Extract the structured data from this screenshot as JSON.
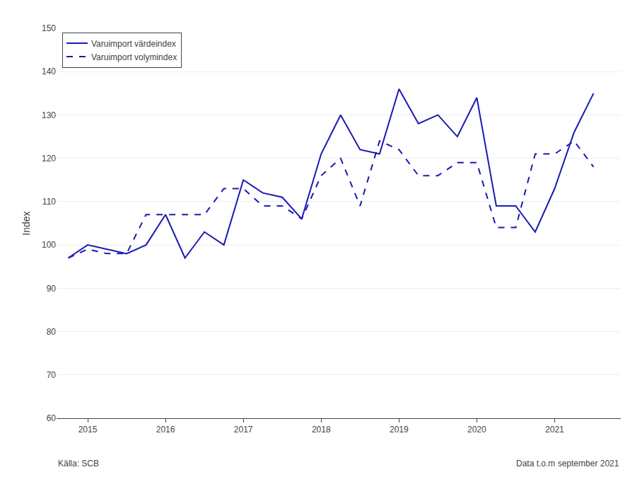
{
  "chart_data": {
    "type": "line",
    "x": [
      2014.75,
      2015.0,
      2015.25,
      2015.5,
      2015.75,
      2016.0,
      2016.25,
      2016.5,
      2016.75,
      2017.0,
      2017.25,
      2017.5,
      2017.75,
      2018.0,
      2018.25,
      2018.5,
      2018.75,
      2019.0,
      2019.25,
      2019.5,
      2019.75,
      2020.0,
      2020.25,
      2020.5,
      2020.75,
      2021.0,
      2021.25,
      2021.5
    ],
    "series": [
      {
        "name": "Varuimport värdeindex",
        "color": "#1a1ab4",
        "line_style": "solid",
        "values": [
          97,
          100,
          99,
          98,
          100,
          107,
          97,
          103,
          100,
          115,
          112,
          111,
          106,
          121,
          130,
          122,
          121,
          136,
          128,
          130,
          125,
          134,
          109,
          109,
          103,
          113,
          126,
          135
        ]
      },
      {
        "name": "Varuimport volymindex",
        "color": "#1a1ab4",
        "line_style": "dashed",
        "values": [
          97,
          99,
          98,
          98,
          107,
          107,
          107,
          107,
          113,
          113,
          109,
          109,
          106,
          116,
          120,
          109,
          124,
          122,
          116,
          116,
          119,
          119,
          104,
          104,
          121,
          121,
          124,
          118
        ]
      }
    ],
    "ylabel": "Index",
    "xlim": [
      2014.6,
      2021.85
    ],
    "xticks": [
      2015,
      2016,
      2017,
      2018,
      2019,
      2020,
      2021
    ],
    "ylim": [
      60,
      150
    ],
    "yticks": [
      60,
      70,
      80,
      90,
      100,
      110,
      120,
      130,
      140,
      150
    ],
    "grid": true,
    "legend": "upper left",
    "annotations": [
      "Källa: SCB",
      "Data t.o.m september 2021"
    ]
  }
}
